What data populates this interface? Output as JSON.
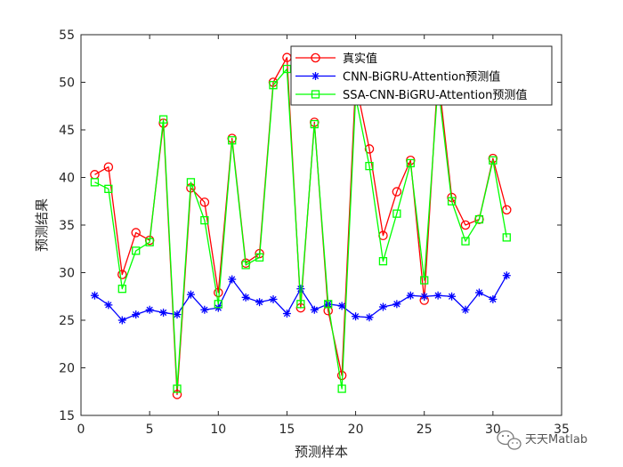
{
  "chart_data": {
    "type": "line",
    "title": "",
    "xlabel": "预测样本",
    "ylabel": "预测结果",
    "xlim": [
      0,
      35
    ],
    "ylim": [
      15,
      55
    ],
    "xticks": [
      0,
      5,
      10,
      15,
      20,
      25,
      30,
      35
    ],
    "yticks": [
      15,
      20,
      25,
      30,
      35,
      40,
      45,
      50,
      55
    ],
    "grid": false,
    "legend_position": "top-right",
    "x": [
      1,
      2,
      3,
      4,
      5,
      6,
      7,
      8,
      9,
      10,
      11,
      12,
      13,
      14,
      15,
      16,
      17,
      18,
      19,
      20,
      21,
      22,
      23,
      24,
      25,
      26,
      27,
      28,
      29,
      30,
      31
    ],
    "series": [
      {
        "name": "真实值",
        "color": "#ff0000",
        "marker": "circle",
        "values": [
          40.3,
          41.1,
          29.8,
          34.2,
          33.4,
          45.7,
          17.2,
          38.9,
          37.4,
          27.9,
          44.1,
          31.0,
          32.0,
          50.0,
          52.6,
          26.3,
          45.8,
          26.0,
          19.2,
          50.0,
          43.0,
          33.9,
          38.5,
          41.8,
          27.1,
          51.0,
          37.9,
          35.0,
          35.6,
          42.0,
          36.6
        ]
      },
      {
        "name": "CNN-BiGRU-Attention预测值",
        "color": "#0000ff",
        "marker": "asterisk",
        "values": [
          27.6,
          26.6,
          25.0,
          25.6,
          26.1,
          25.8,
          25.6,
          27.7,
          26.1,
          26.3,
          29.3,
          27.4,
          26.9,
          27.2,
          25.7,
          28.3,
          26.1,
          26.7,
          26.5,
          25.4,
          25.3,
          26.4,
          26.7,
          27.6,
          27.5,
          27.6,
          27.5,
          26.1,
          27.9,
          27.2,
          29.7
        ]
      },
      {
        "name": "SSA-CNN-BiGRU-Attention预测值",
        "color": "#00ff00",
        "marker": "square",
        "values": [
          39.5,
          38.8,
          28.3,
          32.3,
          33.2,
          46.1,
          17.8,
          39.5,
          35.5,
          26.7,
          43.9,
          30.8,
          31.6,
          49.7,
          51.4,
          26.7,
          45.6,
          26.7,
          17.8,
          48.5,
          41.2,
          31.2,
          36.2,
          41.5,
          29.2,
          49.8,
          37.5,
          33.3,
          35.6,
          41.8,
          33.7
        ]
      }
    ]
  },
  "watermark": {
    "text": "天天Matlab",
    "icon": "wechat-icon"
  }
}
